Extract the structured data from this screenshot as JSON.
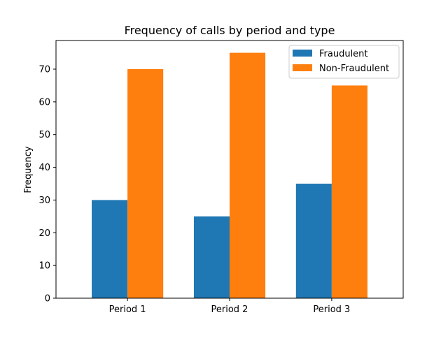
{
  "chart_data": {
    "type": "bar",
    "title": "Frequency of calls by period and type",
    "xlabel": "",
    "ylabel": "Frequency",
    "categories": [
      "Period 1",
      "Period 2",
      "Period 3"
    ],
    "series": [
      {
        "name": "Fraudulent",
        "values": [
          30,
          25,
          35
        ],
        "color": "#1f77b4"
      },
      {
        "name": "Non-Fraudulent",
        "values": [
          70,
          75,
          65
        ],
        "color": "#ff7f0e"
      }
    ],
    "ylim": [
      0,
      78.75
    ],
    "yticks": [
      0,
      10,
      20,
      30,
      40,
      50,
      60,
      70
    ],
    "grid": false,
    "legend_position": "top-right"
  }
}
